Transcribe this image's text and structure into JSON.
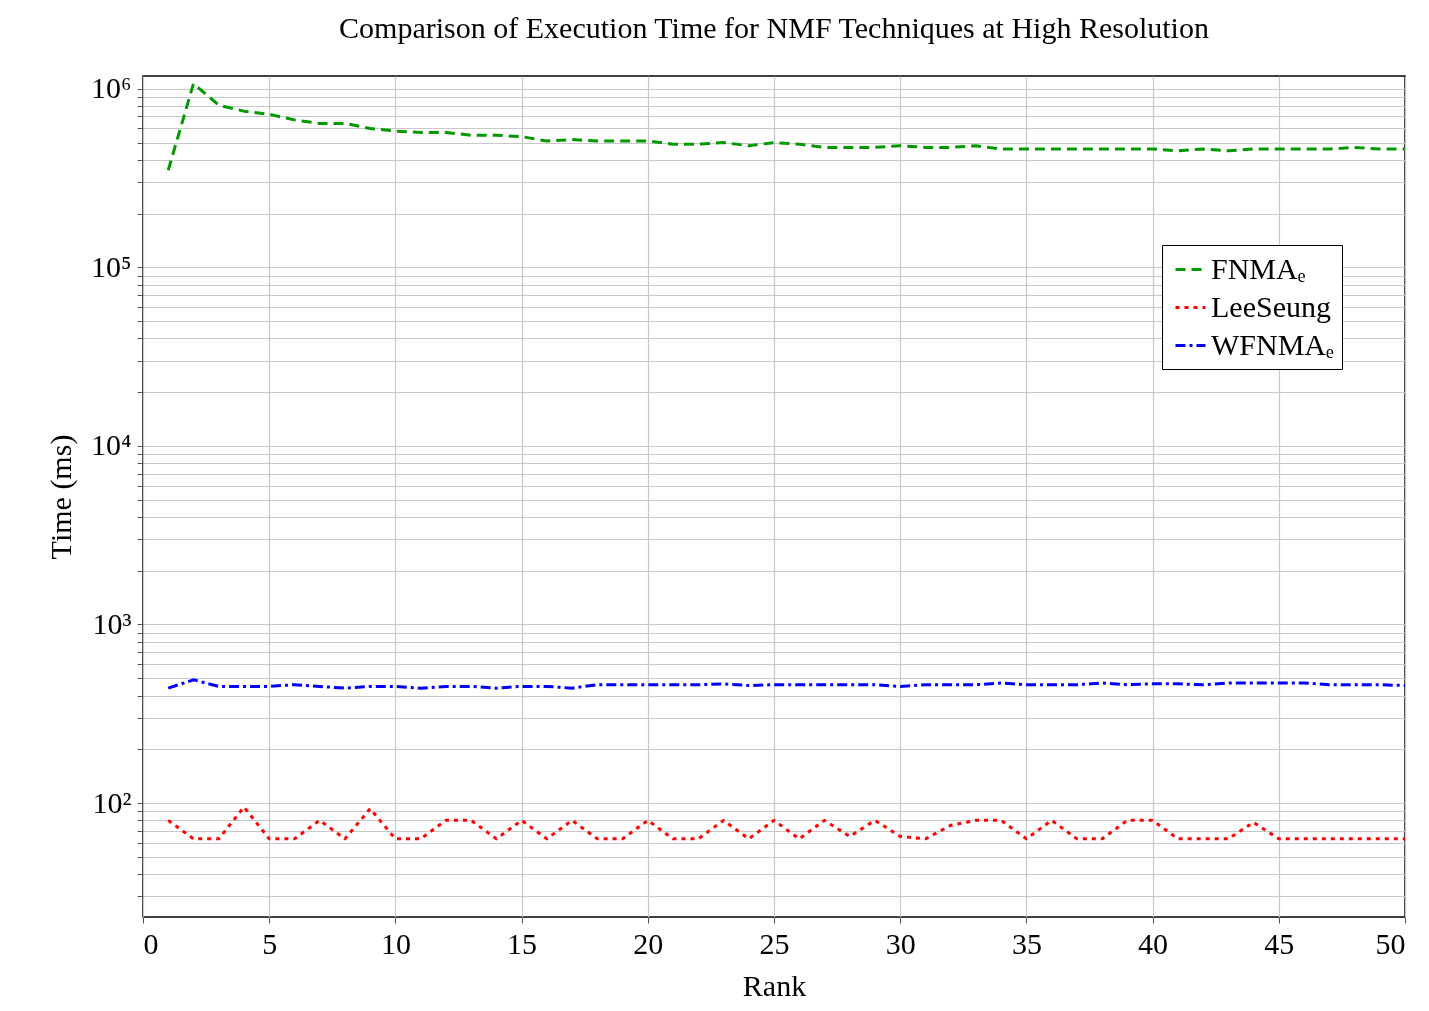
{
  "chart_data": {
    "type": "line",
    "title": "Comparison of Execution Time for NMF Techniques at High Resolution",
    "xlabel": "Rank",
    "ylabel": "Time (ms)",
    "x": [
      1,
      2,
      3,
      4,
      5,
      6,
      7,
      8,
      9,
      10,
      11,
      12,
      13,
      14,
      15,
      16,
      17,
      18,
      19,
      20,
      21,
      22,
      23,
      24,
      25,
      26,
      27,
      28,
      29,
      30,
      31,
      32,
      33,
      34,
      35,
      36,
      37,
      38,
      39,
      40,
      41,
      42,
      43,
      44,
      45,
      46,
      47,
      48,
      49,
      50
    ],
    "series": [
      {
        "name": "FNMAₑ",
        "color": "#009900",
        "line_style": "dashed",
        "values": [
          350000,
          1070000,
          810000,
          750000,
          720000,
          670000,
          640000,
          640000,
          600000,
          580000,
          570000,
          570000,
          550000,
          550000,
          540000,
          510000,
          520000,
          510000,
          510000,
          510000,
          490000,
          490000,
          500000,
          480000,
          500000,
          490000,
          470000,
          470000,
          470000,
          480000,
          470000,
          470000,
          480000,
          460000,
          460000,
          460000,
          460000,
          460000,
          460000,
          460000,
          450000,
          460000,
          450000,
          460000,
          460000,
          460000,
          460000,
          470000,
          460000,
          460000
        ]
      },
      {
        "name": "LeeSeung",
        "color": "#ff0000",
        "line_style": "dotted",
        "values": [
          80,
          63,
          63,
          95,
          63,
          63,
          80,
          63,
          93,
          63,
          63,
          80,
          80,
          63,
          80,
          63,
          80,
          63,
          63,
          80,
          63,
          63,
          80,
          63,
          80,
          63,
          80,
          65,
          80,
          65,
          63,
          75,
          80,
          80,
          63,
          80,
          63,
          63,
          80,
          80,
          63,
          63,
          63,
          78,
          63,
          63,
          63,
          63,
          63,
          63
        ]
      },
      {
        "name": "WFNMAₑ",
        "color": "#0000ff",
        "line_style": "dashdot",
        "values": [
          440,
          490,
          450,
          450,
          450,
          460,
          450,
          440,
          450,
          450,
          440,
          450,
          450,
          440,
          450,
          450,
          440,
          460,
          460,
          460,
          460,
          460,
          465,
          455,
          460,
          460,
          460,
          460,
          460,
          450,
          460,
          460,
          460,
          470,
          460,
          460,
          460,
          470,
          460,
          465,
          465,
          460,
          470,
          470,
          470,
          470,
          460,
          460,
          460,
          455
        ]
      }
    ],
    "xlim": [
      0,
      50
    ],
    "xticks": [
      0,
      5,
      10,
      15,
      20,
      25,
      30,
      35,
      40,
      45,
      50
    ],
    "ylim": [
      23,
      1180000
    ],
    "log": true,
    "yticks": [
      {
        "value": 30,
        "label": null
      },
      {
        "value": 40,
        "label": null
      },
      {
        "value": 50,
        "label": null
      },
      {
        "value": 60,
        "label": null
      },
      {
        "value": 70,
        "label": null
      },
      {
        "value": 80,
        "label": null
      },
      {
        "value": 90,
        "label": null
      },
      {
        "value": 100,
        "label": "10²"
      },
      {
        "value": 200,
        "label": null
      },
      {
        "value": 300,
        "label": null
      },
      {
        "value": 400,
        "label": null
      },
      {
        "value": 500,
        "label": null
      },
      {
        "value": 600,
        "label": null
      },
      {
        "value": 700,
        "label": null
      },
      {
        "value": 800,
        "label": null
      },
      {
        "value": 900,
        "label": null
      },
      {
        "value": 1000,
        "label": "10³"
      },
      {
        "value": 2000,
        "label": null
      },
      {
        "value": 3000,
        "label": null
      },
      {
        "value": 4000,
        "label": null
      },
      {
        "value": 5000,
        "label": null
      },
      {
        "value": 6000,
        "label": null
      },
      {
        "value": 7000,
        "label": null
      },
      {
        "value": 8000,
        "label": null
      },
      {
        "value": 9000,
        "label": null
      },
      {
        "value": 10000,
        "label": "10⁴"
      },
      {
        "value": 20000,
        "label": null
      },
      {
        "value": 30000,
        "label": null
      },
      {
        "value": 40000,
        "label": null
      },
      {
        "value": 50000,
        "label": null
      },
      {
        "value": 60000,
        "label": null
      },
      {
        "value": 70000,
        "label": null
      },
      {
        "value": 80000,
        "label": null
      },
      {
        "value": 90000,
        "label": null
      },
      {
        "value": 100000,
        "label": "10⁵"
      },
      {
        "value": 200000,
        "label": null
      },
      {
        "value": 300000,
        "label": null
      },
      {
        "value": 400000,
        "label": null
      },
      {
        "value": 500000,
        "label": null
      },
      {
        "value": 600000,
        "label": null
      },
      {
        "value": 700000,
        "label": null
      },
      {
        "value": 800000,
        "label": null
      },
      {
        "value": 900000,
        "label": null
      },
      {
        "value": 1000000,
        "label": "10⁶"
      }
    ],
    "grid": true,
    "legend": "top right",
    "marker": "none"
  }
}
